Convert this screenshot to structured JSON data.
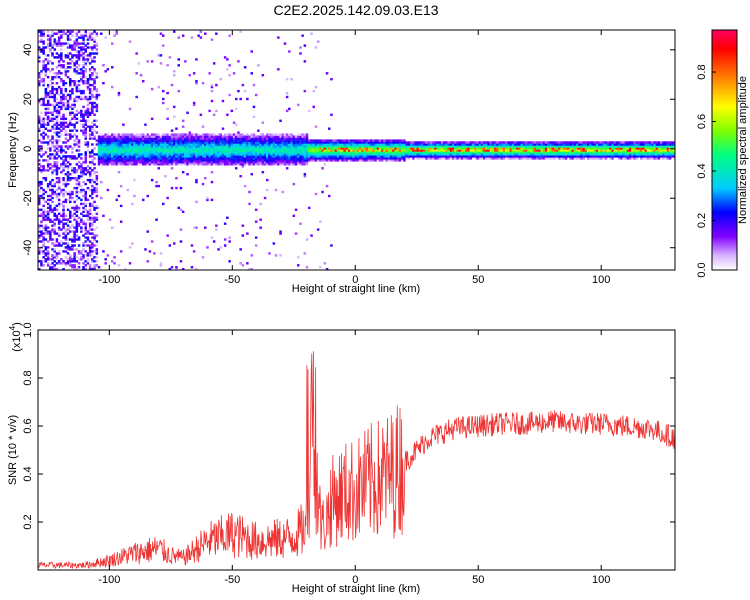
{
  "title": "C2E2.2025.142.09.03.E13",
  "chart_data": [
    {
      "type": "heatmap",
      "xlabel": "Height of straight line (km)",
      "ylabel": "Frequency (Hz)",
      "xlim": [
        -129,
        130
      ],
      "ylim": [
        -49,
        48
      ],
      "xticks": [
        -100,
        -50,
        0,
        50,
        100
      ],
      "yticks": [
        -40,
        -20,
        0,
        20,
        40
      ],
      "colorbar": {
        "label": "Normalized spectral amplitude",
        "range": [
          0,
          0.97
        ],
        "ticks": [
          0.0,
          0.2,
          0.4,
          0.6,
          0.8
        ],
        "colormap": [
          "#ffffff",
          "#d9b3ff",
          "#8000ff",
          "#0000ff",
          "#00ccff",
          "#00ff80",
          "#80ff00",
          "#ffff00",
          "#ff8000",
          "#ff0000",
          "#ff0060"
        ]
      },
      "description_values": {
        "noise_region_x": [
          -129,
          -105
        ],
        "band_region_x": [
          -110,
          130
        ],
        "band_center_freq": 0,
        "band_halfwidth_hz_near": 4,
        "band_halfwidth_hz_far": 2
      }
    },
    {
      "type": "line",
      "xlabel": "Height of straight line (km)",
      "ylabel": "SNR (10 * v/v)",
      "multiplier": "(x10",
      "multiplier_exp": "4",
      "multiplier_close": ")",
      "xlim": [
        -129,
        130
      ],
      "ylim": [
        0,
        1.0
      ],
      "xticks": [
        -100,
        -50,
        0,
        50,
        100
      ],
      "yticks": [
        0.2,
        0.4,
        0.6,
        0.8,
        1.0
      ],
      "color": "#ee3333",
      "series": [
        {
          "envelope_x": [
            -129,
            -110,
            -100,
            -90,
            -80,
            -75,
            -70,
            -60,
            -50,
            -40,
            -30,
            -25,
            -20,
            -18,
            -16,
            -14,
            -12,
            -10,
            -5,
            0,
            5,
            10,
            15,
            20,
            25,
            30,
            40,
            50,
            60,
            70,
            80,
            90,
            100,
            110,
            120,
            130
          ],
          "envelope_y": [
            0.02,
            0.02,
            0.04,
            0.07,
            0.09,
            0.06,
            0.05,
            0.12,
            0.15,
            0.12,
            0.13,
            0.14,
            0.18,
            0.55,
            0.45,
            0.18,
            0.2,
            0.28,
            0.32,
            0.33,
            0.36,
            0.38,
            0.4,
            0.45,
            0.5,
            0.55,
            0.59,
            0.6,
            0.61,
            0.61,
            0.62,
            0.61,
            0.61,
            0.6,
            0.59,
            0.55
          ]
        }
      ]
    }
  ]
}
